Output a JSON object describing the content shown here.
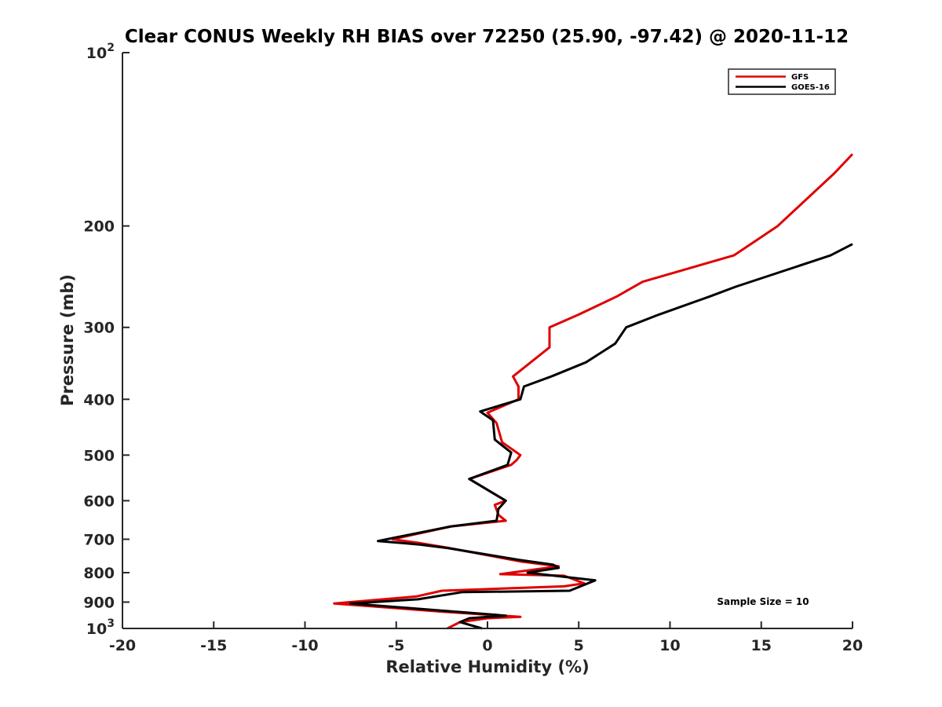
{
  "chart_data": {
    "type": "line",
    "title": "Clear CONUS Weekly RH BIAS over 72250 (25.90, -97.42) @ 2020-11-12",
    "xlabel": "Relative Humidity (%)",
    "ylabel": "Pressure (mb)",
    "xlim": [
      -20,
      20
    ],
    "ylim": [
      100,
      1000
    ],
    "yscale": "log",
    "y_reversed": true,
    "grid": false,
    "x_ticks": [
      -20,
      -15,
      -10,
      -5,
      0,
      5,
      10,
      15,
      20
    ],
    "x_tick_labels": [
      "-20",
      "-15",
      "-10",
      "-5",
      "0",
      "5",
      "10",
      "15",
      "20"
    ],
    "y_ticks": [
      100,
      200,
      300,
      400,
      500,
      600,
      700,
      800,
      900,
      1000
    ],
    "y_tick_labels": [
      {
        "base": "10",
        "exp": "2"
      },
      {
        "base": "200",
        "exp": ""
      },
      {
        "base": "300",
        "exp": ""
      },
      {
        "base": "400",
        "exp": ""
      },
      {
        "base": "500",
        "exp": ""
      },
      {
        "base": "600",
        "exp": ""
      },
      {
        "base": "700",
        "exp": ""
      },
      {
        "base": "800",
        "exp": ""
      },
      {
        "base": "900",
        "exp": ""
      },
      {
        "base": "10",
        "exp": "3"
      }
    ],
    "legend_position": "top-right",
    "annotation": "Sample Size = 10",
    "series": [
      {
        "name": "GFS",
        "color": "#e00000",
        "points": [
          [
            20,
            150
          ],
          [
            19,
            162
          ],
          [
            15.9,
            200
          ],
          [
            13.5,
            225
          ],
          [
            8.5,
            250
          ],
          [
            7.1,
            265
          ],
          [
            5,
            285
          ],
          [
            3.4,
            300
          ],
          [
            3.4,
            325
          ],
          [
            1.4,
            365
          ],
          [
            1.7,
            380
          ],
          [
            1.7,
            400
          ],
          [
            0,
            422
          ],
          [
            0.5,
            440
          ],
          [
            0.8,
            475
          ],
          [
            1.8,
            500
          ],
          [
            1.6,
            510
          ],
          [
            1.3,
            520
          ],
          [
            -1,
            550
          ],
          [
            1,
            600
          ],
          [
            0.4,
            610
          ],
          [
            0.6,
            635
          ],
          [
            1,
            650
          ],
          [
            -2,
            665
          ],
          [
            -5.2,
            700
          ],
          [
            -3.8,
            710
          ],
          [
            -2.1,
            725
          ],
          [
            1.8,
            765
          ],
          [
            3.9,
            780
          ],
          [
            0.7,
            805
          ],
          [
            4.2,
            810
          ],
          [
            5.3,
            835
          ],
          [
            4.2,
            845
          ],
          [
            -2.5,
            860
          ],
          [
            -3.9,
            880
          ],
          [
            -8.4,
            905
          ],
          [
            -2.5,
            935
          ],
          [
            1.8,
            955
          ],
          [
            0,
            960
          ],
          [
            -1.5,
            975
          ],
          [
            -2.2,
            1000
          ]
        ]
      },
      {
        "name": "GOES-16",
        "color": "#000000",
        "points": [
          [
            20,
            215
          ],
          [
            18.8,
            225
          ],
          [
            13.6,
            255
          ],
          [
            12.2,
            265
          ],
          [
            9.4,
            285
          ],
          [
            7.6,
            300
          ],
          [
            7,
            320
          ],
          [
            5.4,
            345
          ],
          [
            3.5,
            365
          ],
          [
            2,
            380
          ],
          [
            1.8,
            400
          ],
          [
            -0.4,
            420
          ],
          [
            0.3,
            435
          ],
          [
            0.4,
            470
          ],
          [
            1.3,
            495
          ],
          [
            1.1,
            520
          ],
          [
            -1,
            550
          ],
          [
            1,
            600
          ],
          [
            0.6,
            620
          ],
          [
            0.5,
            650
          ],
          [
            -2,
            665
          ],
          [
            -6,
            705
          ],
          [
            -3.7,
            715
          ],
          [
            -2.2,
            725
          ],
          [
            1.7,
            760
          ],
          [
            3.6,
            775
          ],
          [
            3.9,
            785
          ],
          [
            2.2,
            800
          ],
          [
            5.9,
            825
          ],
          [
            4.5,
            860
          ],
          [
            -1.4,
            865
          ],
          [
            -3.8,
            890
          ],
          [
            -7.5,
            905
          ],
          [
            1,
            950
          ],
          [
            -1,
            960
          ],
          [
            -1.5,
            975
          ],
          [
            -0.3,
            1000
          ]
        ]
      }
    ]
  }
}
